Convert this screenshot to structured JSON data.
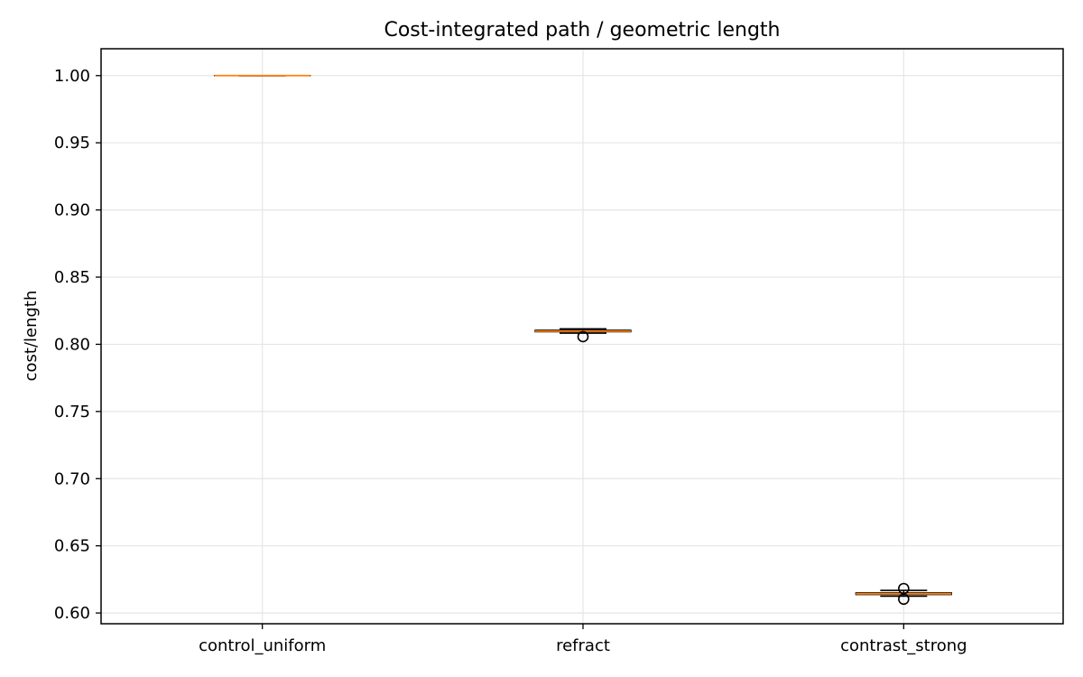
{
  "chart_data": {
    "type": "box",
    "title": "Cost-integrated path / geometric length",
    "xlabel": "",
    "ylabel": "cost/length",
    "categories": [
      "control_uniform",
      "refract",
      "contrast_strong"
    ],
    "ylim": [
      0.592,
      1.02
    ],
    "yticks": [
      0.6,
      0.65,
      0.7,
      0.75,
      0.8,
      0.85,
      0.9,
      0.95,
      1.0
    ],
    "ytick_labels": [
      "0.60",
      "0.65",
      "0.70",
      "0.75",
      "0.80",
      "0.85",
      "0.90",
      "0.95",
      "1.00"
    ],
    "grid": true,
    "boxes": [
      {
        "category": "control_uniform",
        "whisker_low": 1.0,
        "q1": 1.0,
        "median": 1.0,
        "q3": 1.0,
        "whisker_high": 1.0,
        "outliers": []
      },
      {
        "category": "refract",
        "whisker_low": 0.8083,
        "q1": 0.8093,
        "median": 0.8098,
        "q3": 0.8105,
        "whisker_high": 0.8115,
        "outliers": [
          0.8057
        ]
      },
      {
        "category": "contrast_strong",
        "whisker_low": 0.6125,
        "q1": 0.6137,
        "median": 0.6143,
        "q3": 0.615,
        "whisker_high": 0.6168,
        "outliers": [
          0.6103,
          0.6182
        ]
      }
    ],
    "colors": {
      "median": "#ff7f0e",
      "box_edge": "#000000",
      "grid": "#e6e6e6",
      "axes": "#000000"
    }
  }
}
